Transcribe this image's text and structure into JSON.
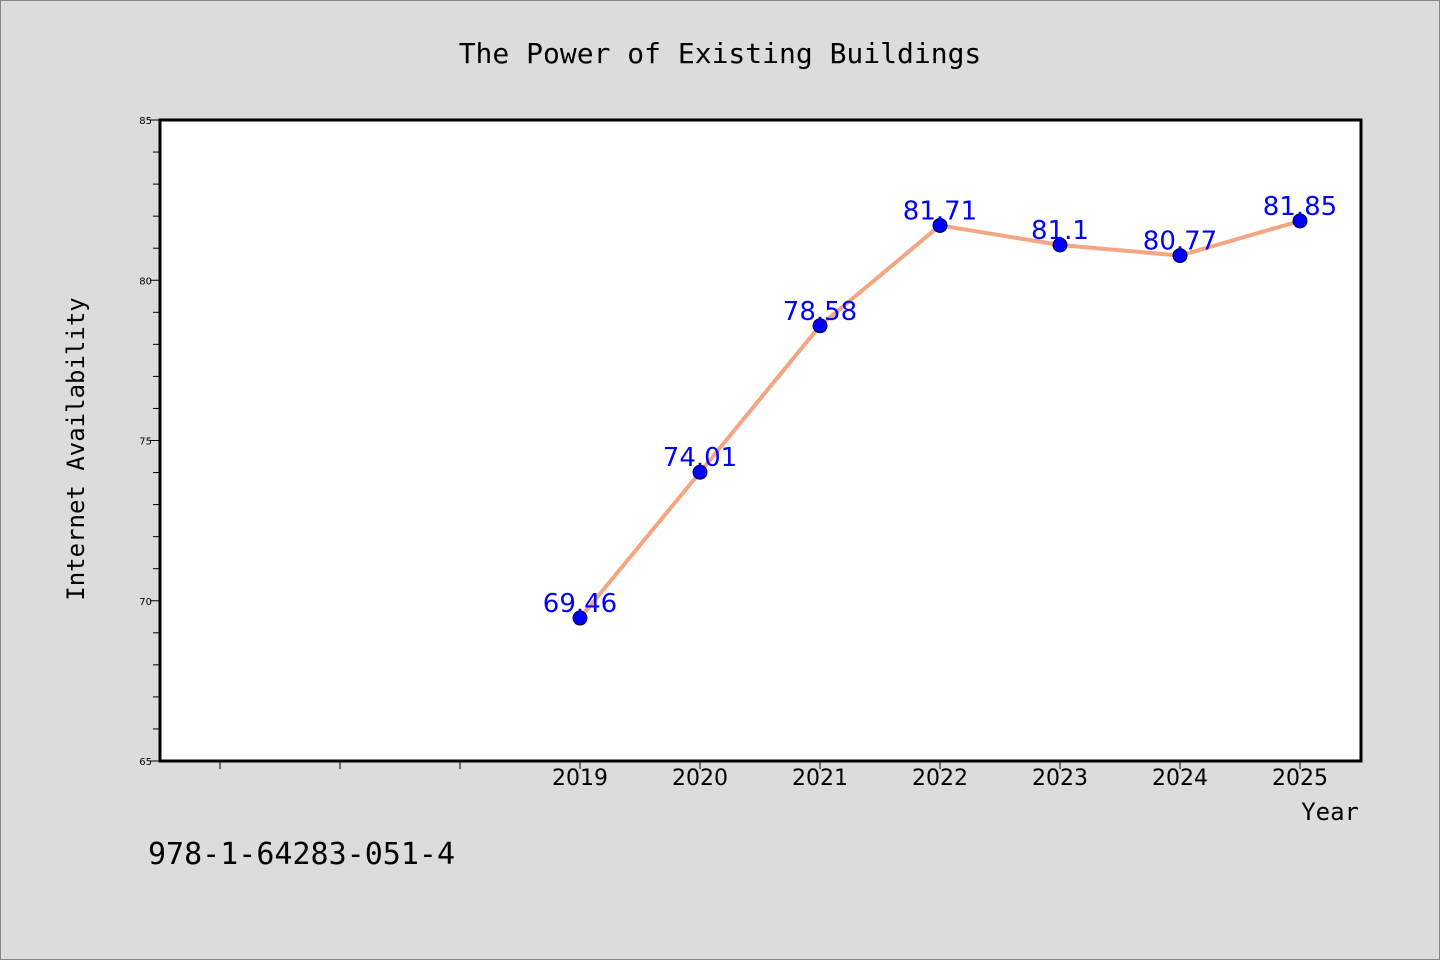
{
  "chart_data": {
    "type": "line",
    "title": "The Power of Existing Buildings",
    "xlabel": "Year",
    "ylabel": "Internet Availability",
    "categories": [
      "2019",
      "2020",
      "2021",
      "2022",
      "2023",
      "2024",
      "2025"
    ],
    "series": [
      {
        "values": [
          69.46,
          74.01,
          78.58,
          81.71,
          81.1,
          80.77,
          81.85
        ]
      }
    ],
    "data_labels": [
      "69.46",
      "74.01",
      "78.58",
      "81.71",
      "81.1",
      "80.77",
      "81.85"
    ],
    "ylim": [
      65,
      85
    ],
    "y_ticks": [
      65,
      70,
      75,
      80,
      85
    ],
    "y_tick_labels": [
      "65",
      "70",
      "75",
      "80",
      "85"
    ],
    "grid": false,
    "legend": "none",
    "colors": {
      "background": "#dcdcdc",
      "plot_background": "#ffffff",
      "line": "#f4a582",
      "marker": "#0000ff",
      "data_label": "#0000ff"
    }
  },
  "footer": {
    "isbn": "978-1-64283-051-4"
  }
}
